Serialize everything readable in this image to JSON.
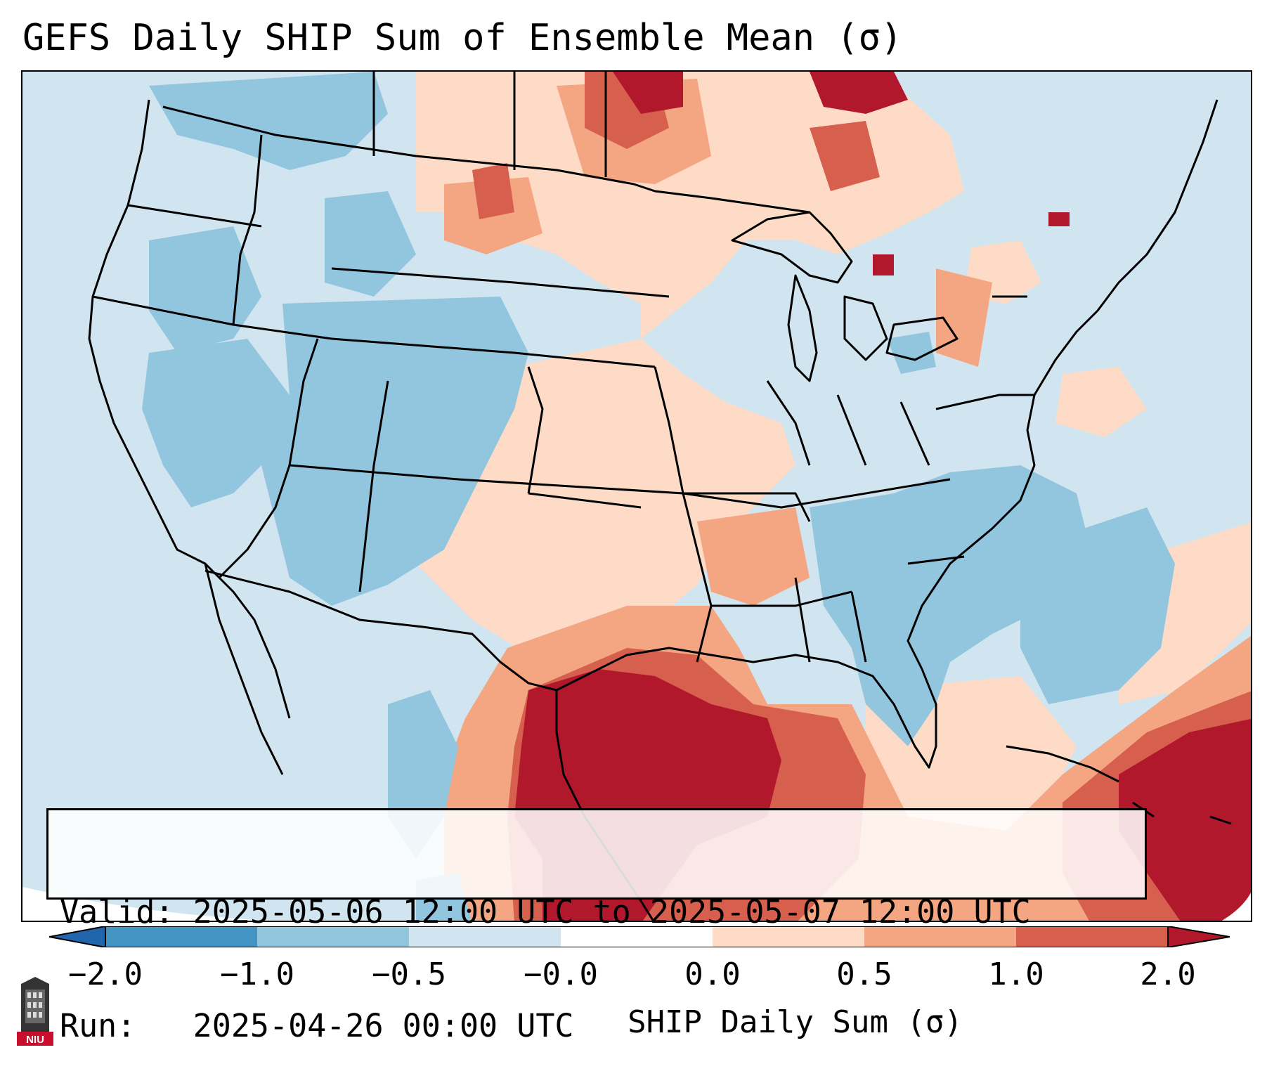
{
  "title": "GEFS Daily SHIP Sum of Ensemble Mean (σ)",
  "info": {
    "valid_label": "Valid:",
    "valid_value": "2025-05-06 12:00 UTC to 2025-05-07 12:00 UTC",
    "run_label": "Run:",
    "run_value": "2025-04-26 00:00 UTC"
  },
  "colorbar": {
    "label": "SHIP Daily Sum (σ)",
    "ticks": [
      "−2.0",
      "−1.0",
      "−0.5",
      "−0.0",
      "0.0",
      "0.5",
      "1.0",
      "2.0"
    ],
    "bin_colors": [
      "#4393c3",
      "#92c5de",
      "#d1e5f0",
      "#fddbc7",
      "#f4a582",
      "#d6604d"
    ],
    "extend_low_color": "#2166ac",
    "extend_high_color": "#b2182b"
  },
  "map": {
    "ocean_color": "#d1e5f0",
    "boundary_color": "#000000",
    "outside_projection_color": "#ffffff"
  },
  "logo": {
    "text": "NIU",
    "name": "niu-logo"
  }
}
